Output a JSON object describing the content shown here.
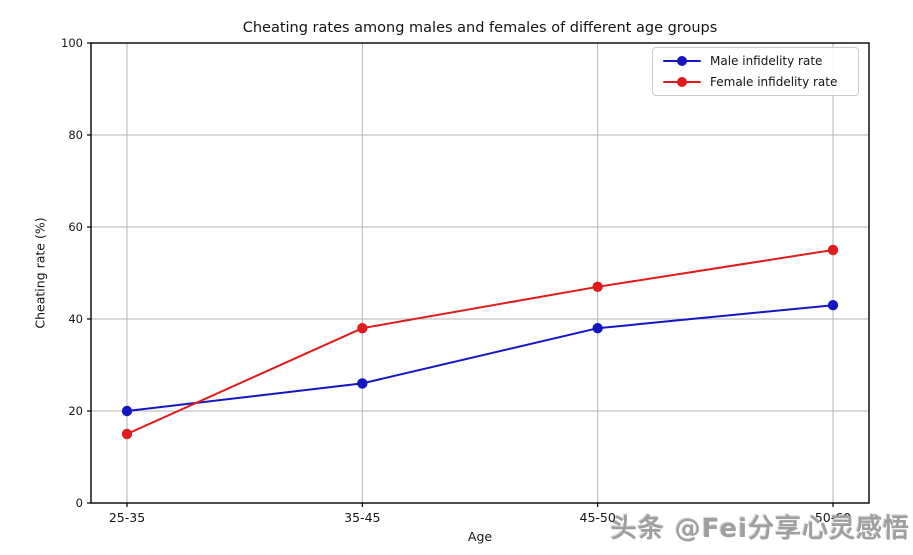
{
  "chart_data": {
    "type": "line",
    "title": "Cheating rates among males and females of different age groups",
    "xlabel": "Age",
    "ylabel": "Cheating rate (%)",
    "categories": [
      "25-35",
      "35-45",
      "45-50",
      "50-60"
    ],
    "series": [
      {
        "name": "Male infidelity rate",
        "color": "#1515c2",
        "values": [
          20,
          26,
          38,
          43
        ]
      },
      {
        "name": "Female infidelity rate",
        "color": "#e01b1b",
        "values": [
          15,
          38,
          47,
          55
        ]
      }
    ],
    "ylim": [
      0,
      100
    ],
    "yticks": [
      0,
      20,
      40,
      60,
      80,
      100
    ],
    "grid": true,
    "grid_color": "#b3b3b3",
    "spine_color": "#000000",
    "legend_position": "upper right"
  },
  "legend": {
    "items": [
      {
        "label": "Male infidelity rate",
        "color": "#1515c2"
      },
      {
        "label": "Female infidelity rate",
        "color": "#e01b1b"
      }
    ]
  },
  "watermark": {
    "text": "头条 @Fei分享心灵感悟",
    "color": "#9f9f9f"
  }
}
